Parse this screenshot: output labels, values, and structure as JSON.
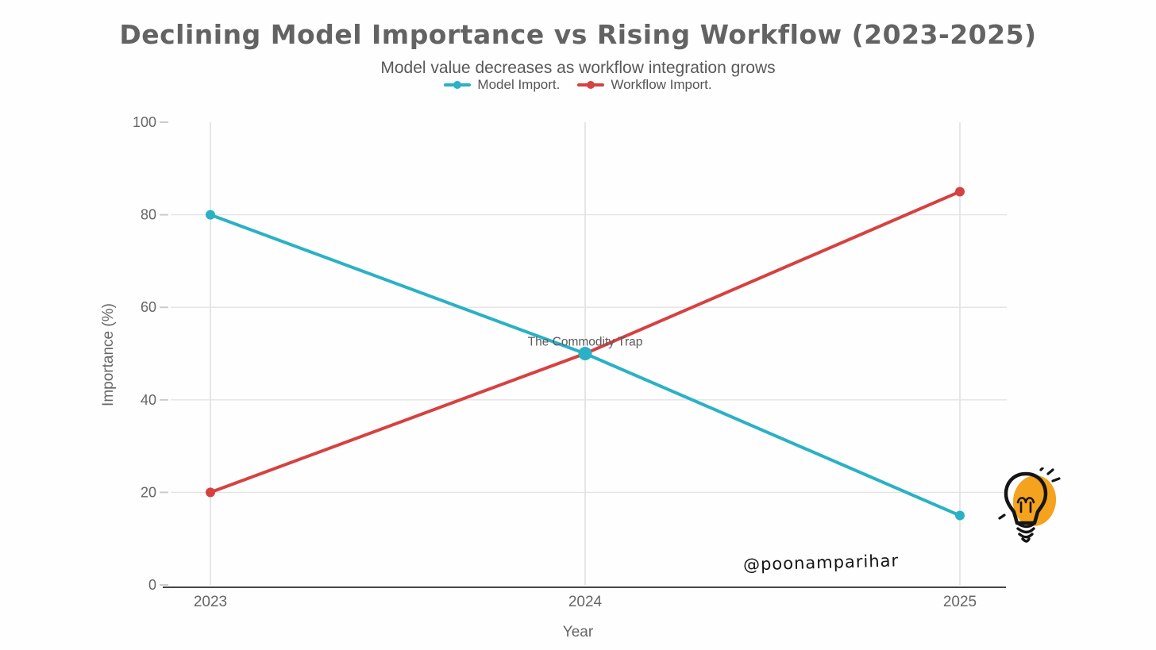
{
  "page": {
    "background": "#fefefe"
  },
  "chart_data": {
    "type": "line",
    "title": "Declining Model Importance vs Rising Workflow (2023-2025)",
    "subtitle": "Model value decreases as workflow integration grows",
    "xlabel": "Year",
    "ylabel": "Importance (%)",
    "categories": [
      "2023",
      "2024",
      "2025"
    ],
    "x": [
      2023,
      2024,
      2025
    ],
    "series": [
      {
        "name": "Model Import.",
        "color": "#2AB1C5",
        "values": [
          80,
          50,
          15
        ]
      },
      {
        "name": "Workflow Import.",
        "color": "#D64141",
        "values": [
          20,
          50,
          85
        ]
      }
    ],
    "ylim": [
      0,
      100
    ],
    "yticks": [
      0,
      20,
      40,
      60,
      80,
      100
    ],
    "grid": true,
    "legend_position": "top-center",
    "annotations": [
      {
        "text": "The Commodity Trap",
        "x": 2024,
        "y": 50
      }
    ],
    "highlight_marker": {
      "series": 0,
      "x": 2024,
      "y": 50
    },
    "colors": {
      "grid": "#e3e3e3",
      "vgrid": "#d9d9d9",
      "axis_line": "#444444",
      "tick_dash": "#cccccc",
      "tick_text": "#666666"
    }
  },
  "branding": {
    "signature": "@poonamparihar",
    "lightbulb_color": "#F5A31F"
  }
}
